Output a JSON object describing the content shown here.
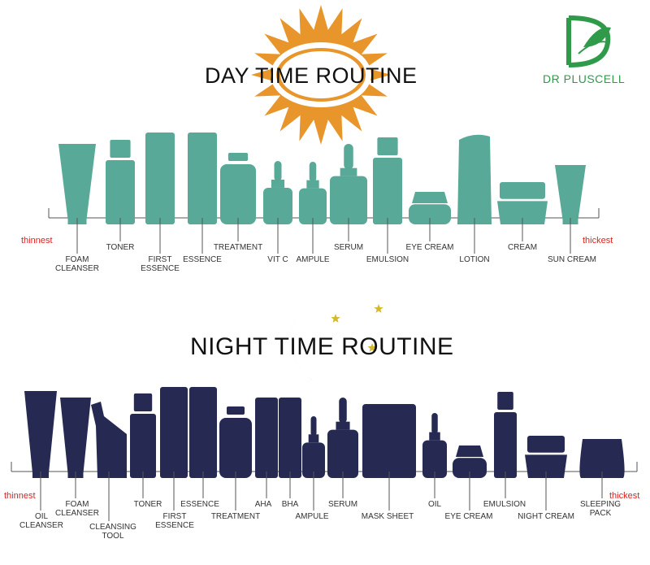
{
  "brand": {
    "name": "DR PLUSCELL"
  },
  "colors": {
    "day_bottles": "#58a998",
    "night_bottles": "#262a52",
    "sun": "#e8962b",
    "moon": "#d4b92e",
    "scale_end": "#e02020"
  },
  "day": {
    "title": "DAY TIME ROUTINE",
    "thinnest": "thinnest",
    "thickest": "thickest",
    "steps": [
      {
        "label": "FOAM\nCLEANSER"
      },
      {
        "label": "TONER"
      },
      {
        "label": "FIRST\nESSENCE"
      },
      {
        "label": "ESSENCE"
      },
      {
        "label": "TREATMENT"
      },
      {
        "label": "VIT C"
      },
      {
        "label": "AMPULE"
      },
      {
        "label": "SERUM"
      },
      {
        "label": "EMULSION"
      },
      {
        "label": "EYE CREAM"
      },
      {
        "label": "LOTION"
      },
      {
        "label": "CREAM"
      },
      {
        "label": "SUN CREAM"
      }
    ]
  },
  "night": {
    "title": "NIGHT TIME ROUTINE",
    "thinnest": "thinnest",
    "thickest": "thickest",
    "steps": [
      {
        "label": "OIL\nCLEANSER"
      },
      {
        "label": "FOAM\nCLEANSER"
      },
      {
        "label": "CLEANSING\nTOOL"
      },
      {
        "label": "TONER"
      },
      {
        "label": "FIRST\nESSENCE"
      },
      {
        "label": "ESSENCE"
      },
      {
        "label": "TREATMENT"
      },
      {
        "label": "AHA"
      },
      {
        "label": "BHA"
      },
      {
        "label": "AMPULE"
      },
      {
        "label": "SERUM"
      },
      {
        "label": "MASK SHEET"
      },
      {
        "label": "OIL"
      },
      {
        "label": "EYE CREAM"
      },
      {
        "label": "EMULSION"
      },
      {
        "label": "NIGHT CREAM"
      },
      {
        "label": "SLEEPING\nPACK"
      }
    ]
  }
}
